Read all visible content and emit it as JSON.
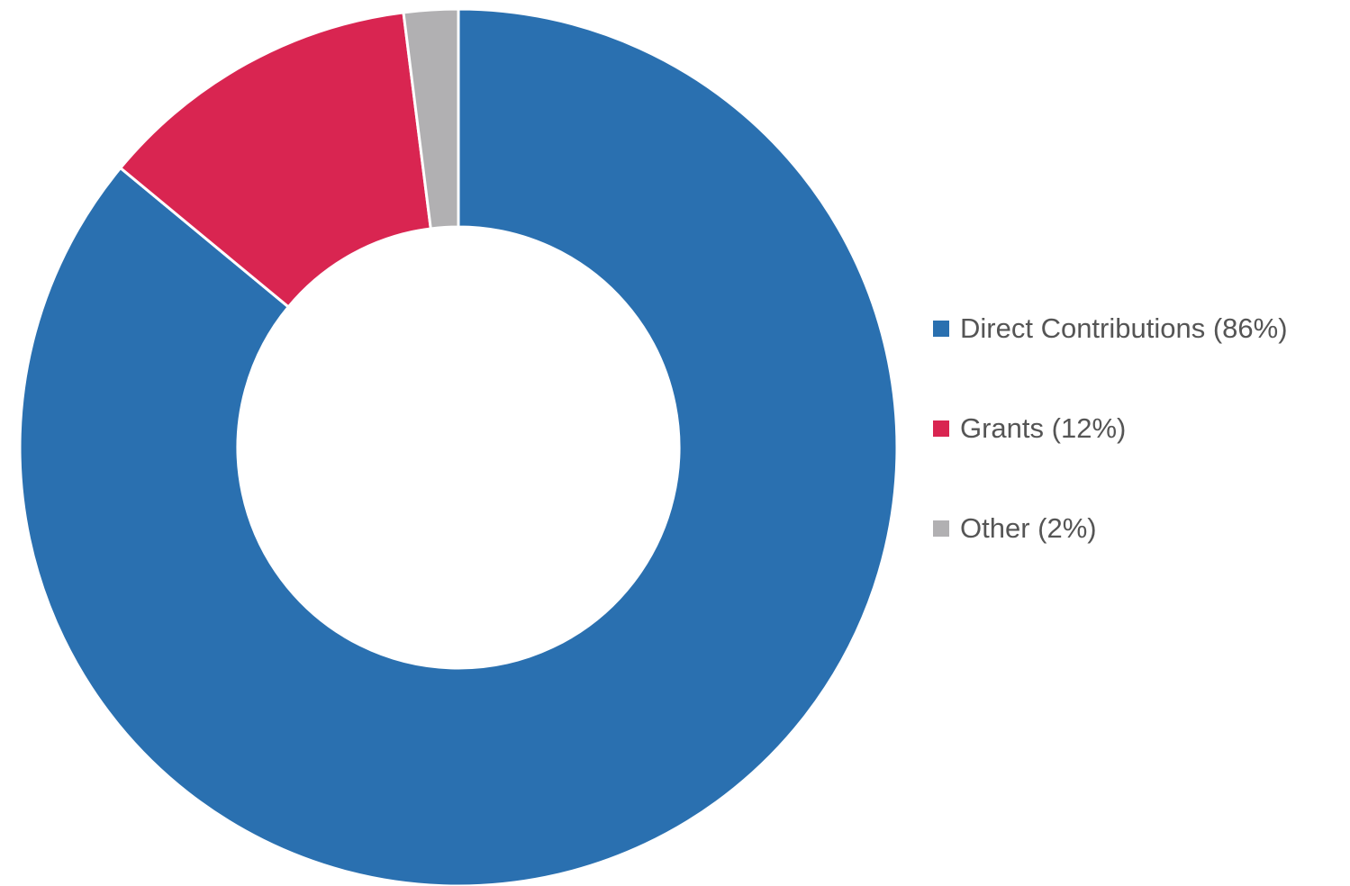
{
  "chart_data": {
    "type": "pie",
    "donut": true,
    "legend_position": "right",
    "slices": [
      {
        "label": "Direct Contributions (86%)",
        "value": 86,
        "color": "#2a70b0"
      },
      {
        "label": "Grants (12%)",
        "value": 12,
        "color": "#d92551"
      },
      {
        "label": "Other (2%)",
        "value": 2,
        "color": "#b1b0b2"
      }
    ]
  }
}
